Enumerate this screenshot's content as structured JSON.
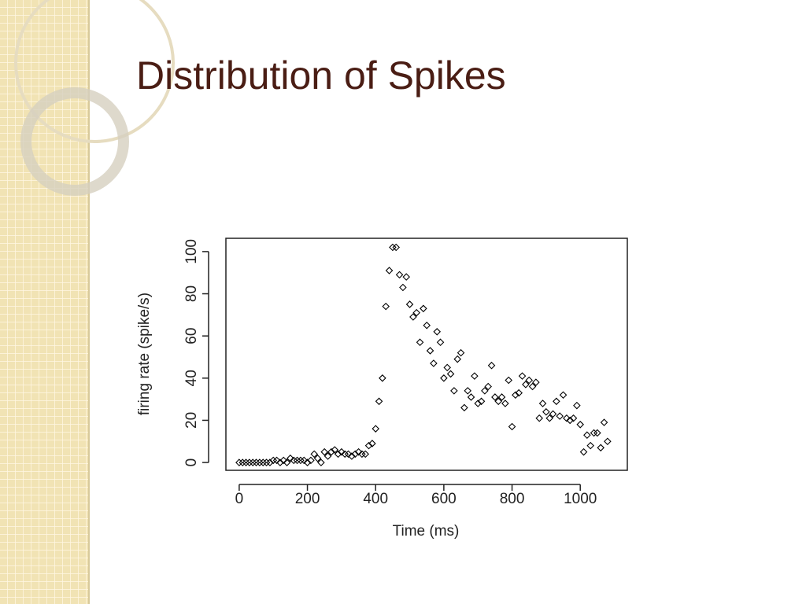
{
  "chart_data": {
    "type": "scatter",
    "title": "Distribution of Spikes",
    "x_label": "Time (ms)",
    "y_label": "firing rate (spike/s)",
    "color": "#000000",
    "marker": "diamond",
    "x": [
      0,
      10,
      20,
      30,
      40,
      50,
      60,
      70,
      80,
      90,
      100,
      110,
      120,
      130,
      140,
      150,
      160,
      170,
      180,
      190,
      200,
      210,
      220,
      230,
      240,
      250,
      260,
      270,
      280,
      290,
      300,
      310,
      320,
      330,
      340,
      350,
      360,
      370,
      380,
      390,
      400,
      410,
      420,
      430,
      440,
      450,
      460,
      470,
      480,
      490,
      500,
      510,
      520,
      530,
      540,
      550,
      560,
      570,
      580,
      590,
      600,
      610,
      620,
      630,
      640,
      650,
      660,
      670,
      680,
      690,
      700,
      710,
      720,
      730,
      740,
      750,
      760,
      770,
      780,
      790,
      800,
      810,
      820,
      830,
      840,
      850,
      860,
      870,
      880,
      890,
      900,
      910,
      920,
      930,
      940,
      950,
      960,
      970,
      980,
      990,
      1000,
      1010,
      1020,
      1030,
      1040,
      1050,
      1060,
      1070,
      1080
    ],
    "values": [
      0,
      0,
      0,
      0,
      0,
      0,
      0,
      0,
      0,
      0,
      1,
      1,
      0,
      1,
      0,
      2,
      1,
      1,
      1,
      1,
      0,
      1,
      4,
      2,
      0,
      5,
      3,
      5,
      6,
      4,
      5,
      4,
      4,
      3,
      4,
      5,
      4,
      4,
      8,
      9,
      16,
      29,
      40,
      74,
      91,
      102,
      102,
      89,
      83,
      88,
      75,
      69,
      71,
      57,
      73,
      65,
      53,
      47,
      62,
      57,
      40,
      45,
      42,
      34,
      49,
      52,
      26,
      34,
      31,
      41,
      28,
      29,
      34,
      36,
      46,
      31,
      29,
      31,
      28,
      39,
      17,
      32,
      33,
      41,
      37,
      39,
      36,
      38,
      21,
      28,
      24,
      21,
      23,
      29,
      22,
      32,
      21,
      20,
      21,
      27,
      18,
      5,
      13,
      8,
      14,
      14,
      7,
      19,
      10
    ],
    "xlim": [
      -39,
      1138
    ],
    "ylim": [
      -3.7,
      106.3
    ],
    "xticks": [
      0,
      200,
      400,
      600,
      800,
      1000
    ],
    "yticks": [
      0,
      20,
      40,
      60,
      80,
      100
    ]
  }
}
